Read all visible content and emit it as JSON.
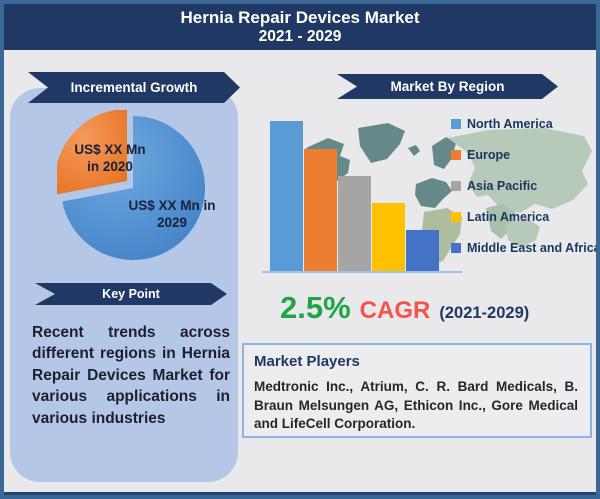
{
  "header": {
    "title_line1": "Hernia Repair Devices Market",
    "title_line2": "2021 - 2029"
  },
  "left_panel": {
    "banner_incremental": "Incremental Growth",
    "pie_label_2020_line1": "US$ XX Mn",
    "pie_label_2020_line2": "in 2020",
    "pie_label_2029_line1": "US$ XX Mn in",
    "pie_label_2029_line2": "2029",
    "banner_key_point": "Key Point",
    "key_point_text": "Recent trends across different regions in Hernia Repair Devices Market for various applications in various industries"
  },
  "right_panel": {
    "banner_region": "Market By Region",
    "cagr": {
      "value": "2.5%",
      "label": "CAGR",
      "period": "(2021-2029)"
    },
    "market_players": {
      "heading": "Market Players",
      "body": "Medtronic Inc., Atrium, C. R. Bard Medicals, B. Braun Melsungen AG, Ethicon Inc., Gore Medical and LifeCell Corporation."
    }
  },
  "colors": {
    "page_border": "#3a6896",
    "header_bg": "#1f3864",
    "panel_bg": "#b4c7e7",
    "banner_bg": "#1f3864",
    "cagr_green": "#1fa548",
    "cagr_red": "#f4544c",
    "navy_text": "#1f3864",
    "axis": "#9dc3e6",
    "players_border": "#8eb4e3"
  },
  "chart_data": [
    {
      "type": "pie",
      "title": "Incremental Growth",
      "slices": [
        {
          "label": "US$ XX Mn in 2020",
          "value": 28,
          "color": "#ed7d31"
        },
        {
          "label": "US$ XX Mn in 2029",
          "value": 72,
          "color": "#4e92d8"
        }
      ],
      "notes": "2020 slice exploded up-left; values not disclosed (XX)"
    },
    {
      "type": "bar",
      "title": "Market By Region",
      "categories": [
        "North America",
        "Europe",
        "Asia Pacific",
        "Latin America",
        "Middle East and Africa"
      ],
      "values": [
        100,
        81,
        63,
        45,
        27
      ],
      "colors": [
        "#5b9bd5",
        "#ed7d31",
        "#a5a5a5",
        "#ffc000",
        "#4472c4"
      ],
      "xlabel": "",
      "ylabel": "",
      "ylim": [
        0,
        100
      ],
      "grid": false,
      "legend_position": "right",
      "notes": "no numeric axis labels shown; descending bars left to right"
    }
  ]
}
